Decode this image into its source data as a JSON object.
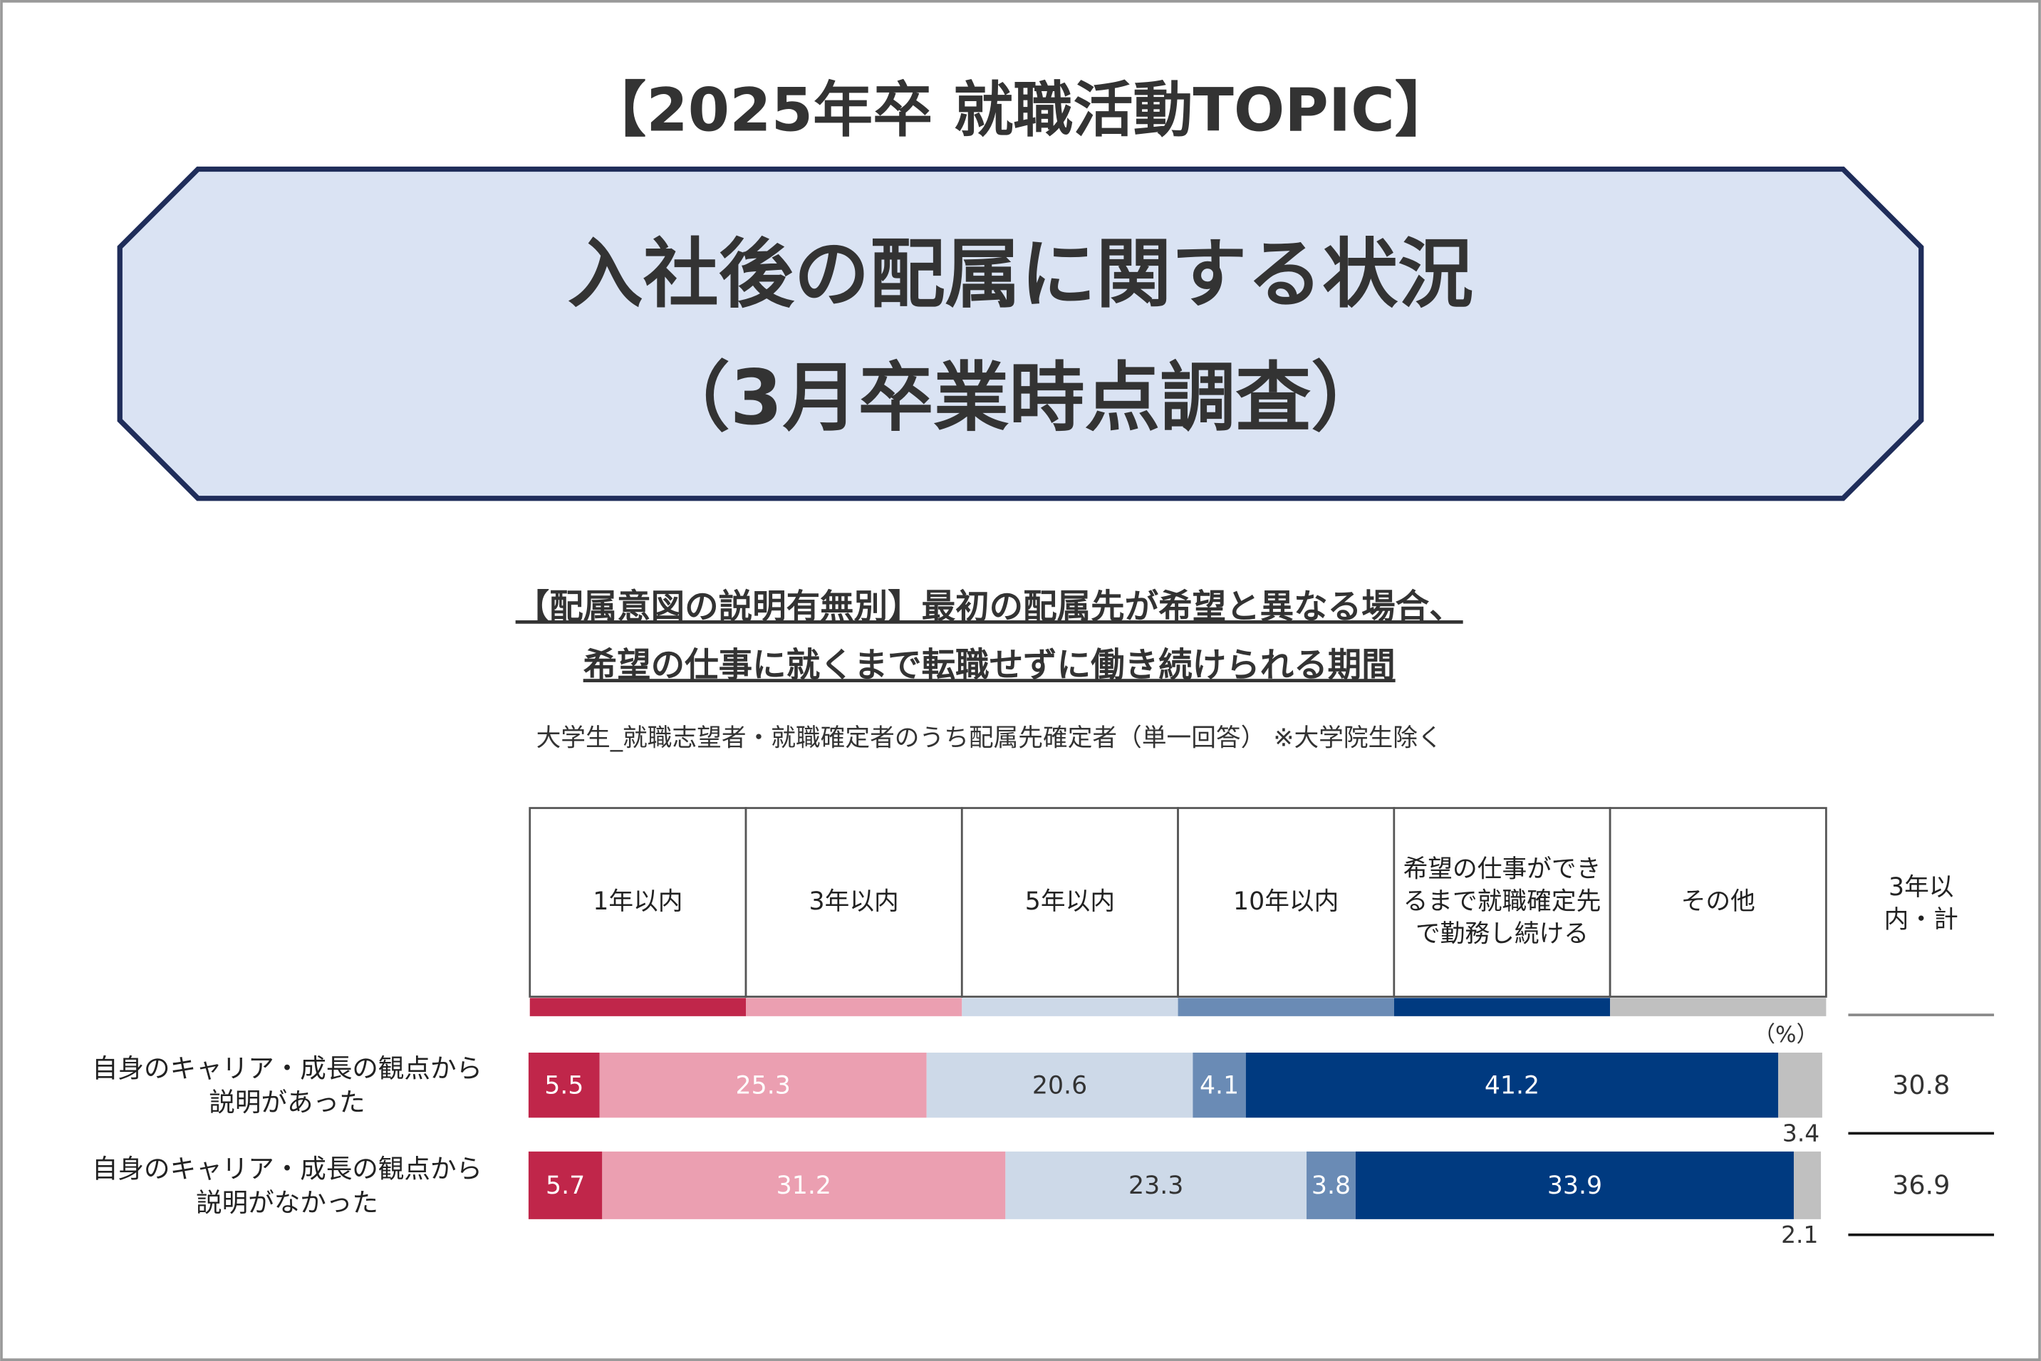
{
  "header": {
    "topic": "【2025年卒 就職活動TOPIC】",
    "title": [
      "入社後の配属に関する状況",
      "（3月卒業時点調査）"
    ]
  },
  "chart_data": {
    "type": "stacked-bar-100",
    "title": [
      "【配属意図の説明有無別】最初の配属先が希望と異なる場合、",
      "希望の仕事に就くまで転職せずに働き続けられる期間"
    ],
    "note": "大学生_就職志望者・就職確定者のうち配属先確定者（単一回答） ※大学院生除く",
    "unit": "（%）",
    "categories": [
      "自身のキャリア・成長の観点から説明があった",
      "自身のキャリア・成長の観点から説明がなかった"
    ],
    "xlim": [
      0,
      100
    ],
    "series": [
      {
        "name": "1年以内",
        "color": "#c0264a",
        "values": [
          5.5,
          5.7
        ]
      },
      {
        "name": "3年以内",
        "color": "#eb9fb1",
        "values": [
          25.3,
          31.2
        ]
      },
      {
        "name": "5年以内",
        "color": "#cdd9e8",
        "values": [
          20.6,
          23.3
        ]
      },
      {
        "name": "10年以内",
        "color": "#6a8bb5",
        "values": [
          4.1,
          3.8
        ]
      },
      {
        "name": "希望の仕事ができるまで就職確定先で勤務し続ける",
        "color": "#003a80",
        "values": [
          41.2,
          33.9
        ]
      },
      {
        "name": "その他",
        "color": "#c0c0c0",
        "values": [
          3.4,
          2.1
        ]
      }
    ],
    "total_label": "3年以内・計",
    "totals": [
      30.8,
      36.9
    ]
  }
}
